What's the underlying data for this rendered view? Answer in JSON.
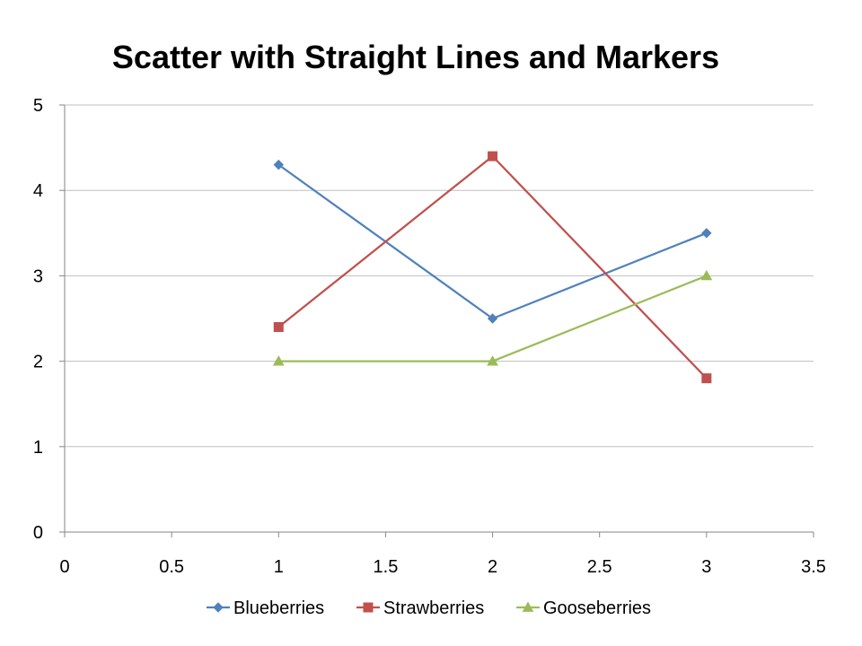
{
  "chart_data": {
    "type": "scatter",
    "title": "Scatter with Straight Lines and Markers",
    "xlabel": "",
    "ylabel": "",
    "xlim": [
      0,
      3.5
    ],
    "ylim": [
      0,
      5
    ],
    "x_ticks": [
      "0",
      "0.5",
      "1",
      "1.5",
      "2",
      "2.5",
      "3",
      "3.5"
    ],
    "y_ticks": [
      "0",
      "1",
      "2",
      "3",
      "4",
      "5"
    ],
    "grid": "horizontal",
    "legend_position": "bottom",
    "series": [
      {
        "name": "Blueberries",
        "color": "#4f81bd",
        "marker": "diamond",
        "x": [
          1,
          2,
          3
        ],
        "y": [
          4.3,
          2.5,
          3.5
        ]
      },
      {
        "name": "Strawberries",
        "color": "#c0504d",
        "marker": "square",
        "x": [
          1,
          2,
          3
        ],
        "y": [
          2.4,
          4.4,
          1.8
        ]
      },
      {
        "name": "Gooseberries",
        "color": "#9bbb59",
        "marker": "triangle",
        "x": [
          1,
          2,
          3
        ],
        "y": [
          2,
          2,
          3
        ]
      }
    ]
  }
}
